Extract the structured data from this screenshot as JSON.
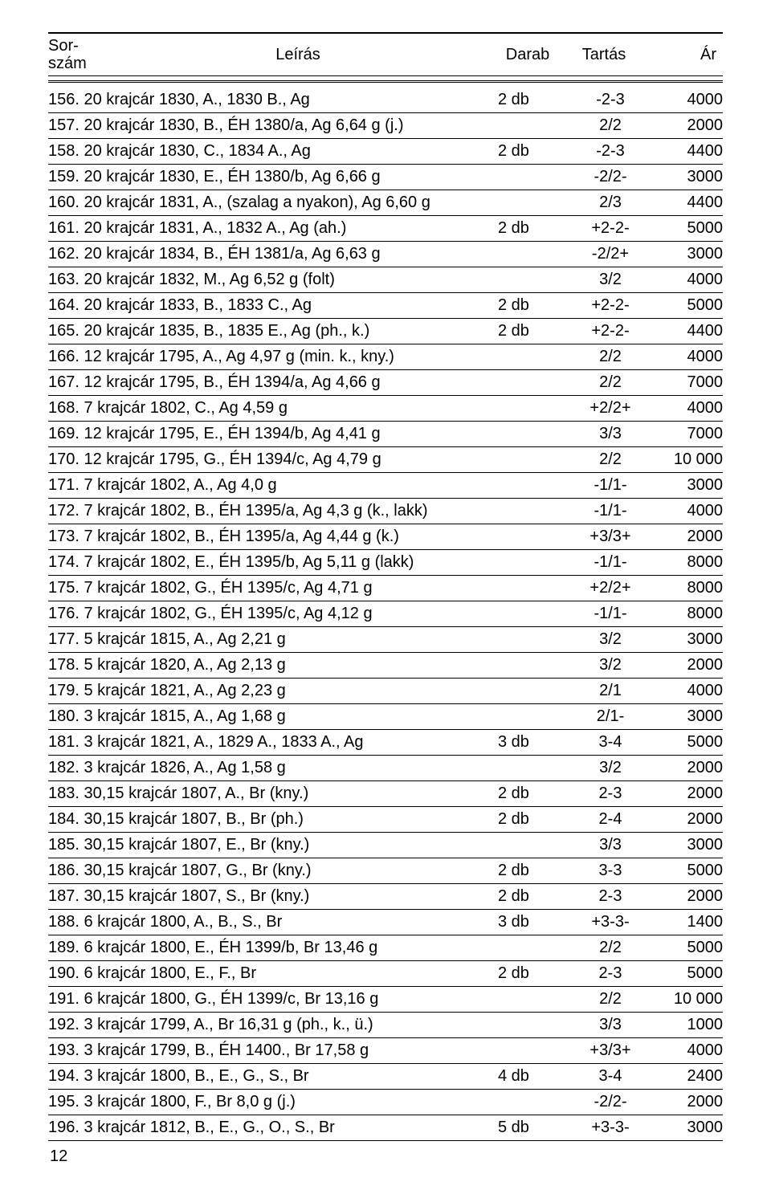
{
  "header": {
    "sor_line1": "Sor-",
    "sor_line2": "szám",
    "leiras": "Leírás",
    "darab": "Darab",
    "tartas": "Tartás",
    "ar": "Ár"
  },
  "page_number": "12",
  "rows": [
    {
      "desc": "156. 20 krajcár 1830, A., 1830 B., Ag",
      "darab": "2 db",
      "tartas": "-2-3",
      "ar": "4000"
    },
    {
      "desc": "157. 20 krajcár 1830, B., ÉH 1380/a, Ag 6,64 g (j.)",
      "darab": "",
      "tartas": "2/2",
      "ar": "2000"
    },
    {
      "desc": "158. 20 krajcár 1830, C., 1834 A., Ag",
      "darab": "2 db",
      "tartas": "-2-3",
      "ar": "4400"
    },
    {
      "desc": "159. 20 krajcár 1830, E., ÉH 1380/b, Ag 6,66 g",
      "darab": "",
      "tartas": "-2/2-",
      "ar": "3000"
    },
    {
      "desc": "160. 20 krajcár 1831, A., (szalag a nyakon), Ag 6,60 g",
      "darab": "",
      "tartas": "2/3",
      "ar": "4400"
    },
    {
      "desc": "161. 20 krajcár 1831, A., 1832 A., Ag (ah.)",
      "darab": "2 db",
      "tartas": "+2-2-",
      "ar": "5000"
    },
    {
      "desc": "162. 20 krajcár 1834, B., ÉH 1381/a, Ag 6,63 g",
      "darab": "",
      "tartas": "-2/2+",
      "ar": "3000"
    },
    {
      "desc": "163. 20 krajcár 1832, M., Ag 6,52 g (folt)",
      "darab": "",
      "tartas": "3/2",
      "ar": "4000"
    },
    {
      "desc": "164. 20 krajcár 1833, B., 1833 C., Ag",
      "darab": "2 db",
      "tartas": "+2-2-",
      "ar": "5000"
    },
    {
      "desc": "165. 20 krajcár 1835, B., 1835 E., Ag (ph., k.)",
      "darab": "2 db",
      "tartas": "+2-2-",
      "ar": "4400"
    },
    {
      "desc": "166. 12 krajcár 1795, A., Ag 4,97 g (min. k., kny.)",
      "darab": "",
      "tartas": "2/2",
      "ar": "4000"
    },
    {
      "desc": "167. 12 krajcár 1795, B., ÉH 1394/a, Ag 4,66 g",
      "darab": "",
      "tartas": "2/2",
      "ar": "7000"
    },
    {
      "desc": "168. 7 krajcár 1802, C., Ag 4,59 g",
      "darab": "",
      "tartas": "+2/2+",
      "ar": "4000"
    },
    {
      "desc": "169. 12 krajcár 1795, E., ÉH 1394/b, Ag 4,41 g",
      "darab": "",
      "tartas": "3/3",
      "ar": "7000"
    },
    {
      "desc": "170. 12 krajcár 1795, G., ÉH 1394/c, Ag 4,79 g",
      "darab": "",
      "tartas": "2/2",
      "ar": "10 000"
    },
    {
      "desc": "171. 7 krajcár 1802, A., Ag 4,0 g",
      "darab": "",
      "tartas": "-1/1-",
      "ar": "3000"
    },
    {
      "desc": "172. 7 krajcár 1802, B., ÉH 1395/a, Ag 4,3 g (k., lakk)",
      "darab": "",
      "tartas": "-1/1-",
      "ar": "4000"
    },
    {
      "desc": "173. 7 krajcár 1802, B., ÉH 1395/a, Ag 4,44 g (k.)",
      "darab": "",
      "tartas": "+3/3+",
      "ar": "2000"
    },
    {
      "desc": "174. 7 krajcár 1802, E., ÉH 1395/b, Ag 5,11 g (lakk)",
      "darab": "",
      "tartas": "-1/1-",
      "ar": "8000"
    },
    {
      "desc": "175. 7 krajcár 1802, G., ÉH 1395/c, Ag 4,71 g",
      "darab": "",
      "tartas": "+2/2+",
      "ar": "8000"
    },
    {
      "desc": "176. 7 krajcár 1802, G., ÉH 1395/c, Ag 4,12 g",
      "darab": "",
      "tartas": "-1/1-",
      "ar": "8000"
    },
    {
      "desc": "177. 5 krajcár 1815, A., Ag 2,21 g",
      "darab": "",
      "tartas": "3/2",
      "ar": "3000"
    },
    {
      "desc": "178. 5 krajcár 1820, A., Ag 2,13 g",
      "darab": "",
      "tartas": "3/2",
      "ar": "2000"
    },
    {
      "desc": "179. 5 krajcár 1821, A., Ag 2,23 g",
      "darab": "",
      "tartas": "2/1",
      "ar": "4000"
    },
    {
      "desc": "180. 3 krajcár 1815, A., Ag 1,68 g",
      "darab": "",
      "tartas": "2/1-",
      "ar": "3000"
    },
    {
      "desc": "181. 3 krajcár 1821, A., 1829 A., 1833 A., Ag",
      "darab": "3 db",
      "tartas": "3-4",
      "ar": "5000"
    },
    {
      "desc": "182. 3 krajcár 1826, A., Ag 1,58 g",
      "darab": "",
      "tartas": "3/2",
      "ar": "2000"
    },
    {
      "desc": "183. 30,15 krajcár 1807, A., Br (kny.)",
      "darab": "2 db",
      "tartas": "2-3",
      "ar": "2000"
    },
    {
      "desc": "184. 30,15 krajcár 1807, B., Br (ph.)",
      "darab": "2 db",
      "tartas": "2-4",
      "ar": "2000"
    },
    {
      "desc": "185. 30,15 krajcár 1807, E., Br (kny.)",
      "darab": "",
      "tartas": "3/3",
      "ar": "3000"
    },
    {
      "desc": "186. 30,15 krajcár 1807, G., Br (kny.)",
      "darab": "2 db",
      "tartas": "3-3",
      "ar": "5000"
    },
    {
      "desc": "187. 30,15 krajcár 1807, S., Br (kny.)",
      "darab": "2 db",
      "tartas": "2-3",
      "ar": "2000"
    },
    {
      "desc": "188. 6 krajcár 1800, A., B., S., Br",
      "darab": "3 db",
      "tartas": "+3-3-",
      "ar": "1400"
    },
    {
      "desc": "189. 6 krajcár 1800, E., ÉH 1399/b, Br 13,46 g",
      "darab": "",
      "tartas": "2/2",
      "ar": "5000"
    },
    {
      "desc": "190. 6 krajcár 1800, E., F., Br",
      "darab": "2 db",
      "tartas": "2-3",
      "ar": "5000"
    },
    {
      "desc": "191. 6 krajcár 1800, G., ÉH 1399/c, Br 13,16 g",
      "darab": "",
      "tartas": "2/2",
      "ar": "10 000"
    },
    {
      "desc": "192. 3 krajcár 1799, A., Br 16,31 g (ph., k., ü.)",
      "darab": "",
      "tartas": "3/3",
      "ar": "1000"
    },
    {
      "desc": "193. 3 krajcár 1799, B., ÉH 1400., Br 17,58 g",
      "darab": "",
      "tartas": "+3/3+",
      "ar": "4000"
    },
    {
      "desc": "194. 3 krajcár 1800, B., E., G., S., Br",
      "darab": "4 db",
      "tartas": "3-4",
      "ar": "2400"
    },
    {
      "desc": "195. 3 krajcár 1800, F., Br 8,0 g (j.)",
      "darab": "",
      "tartas": "-2/2-",
      "ar": "2000"
    },
    {
      "desc": "196. 3 krajcár 1812, B., E., G., O., S., Br",
      "darab": "5 db",
      "tartas": "+3-3-",
      "ar": "3000"
    }
  ]
}
